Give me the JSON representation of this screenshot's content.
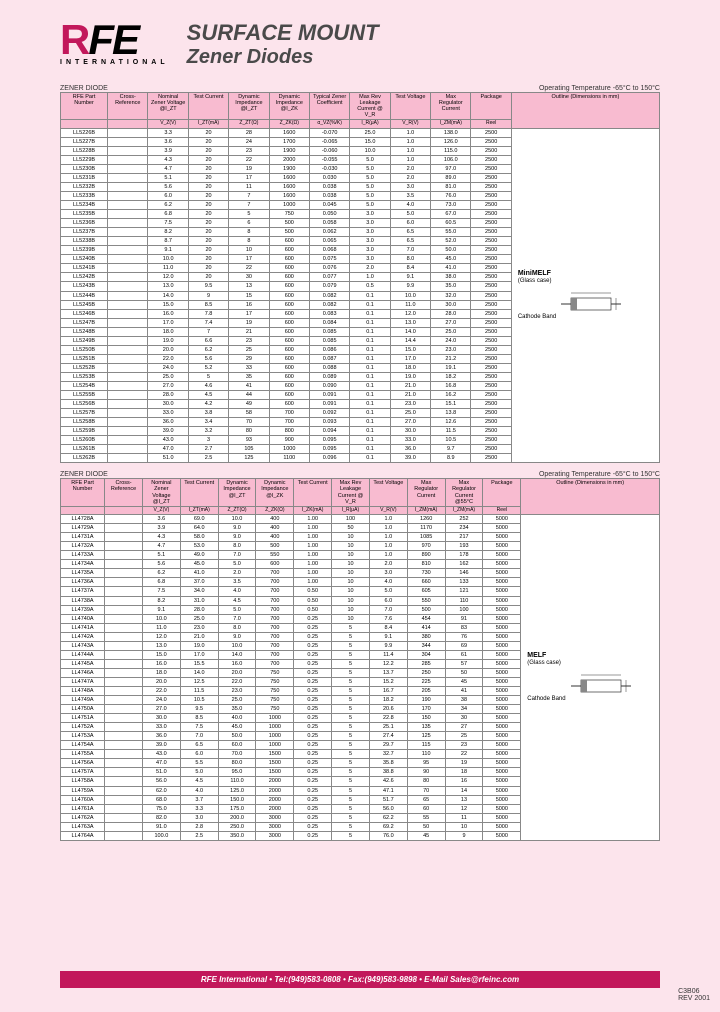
{
  "header": {
    "logo_r": "R",
    "logo_fe": "FE",
    "intl": "INTERNATIONAL",
    "title1": "SURFACE MOUNT",
    "title2": "Zener Diodes"
  },
  "table1": {
    "label": "ZENER DIODE",
    "temp": "Operating Temperature -65°C to 150°C",
    "headers": [
      "RFE Part Number",
      "Cross-Reference",
      "Nominal Zener Voltage @I_ZT",
      "Test Current",
      "Dynamic Impedance @I_ZT",
      "Dynamic Impedance @I_ZK",
      "Typical Zener Coefficient",
      "Max Rev Leakage Current @ V_R",
      "Test Voltage",
      "Max Regulator Current",
      "Package"
    ],
    "outline_h": "Outline (Dimensions in mm)",
    "sub": [
      "",
      "",
      "V_Z(V)",
      "I_ZT(mA)",
      "Z_ZT(Ω)",
      "Z_ZK(Ω)",
      "α_VZ(%/K)",
      "I_R(μA)",
      "V_R(V)",
      "I_ZM(mA)",
      "Reel"
    ],
    "rows": [
      [
        "LL5226B",
        "",
        "3.3",
        "20",
        "28",
        "1600",
        "-0.070",
        "25.0",
        "1.0",
        "138.0",
        "2500"
      ],
      [
        "LL5227B",
        "",
        "3.6",
        "20",
        "24",
        "1700",
        "-0.065",
        "15.0",
        "1.0",
        "126.0",
        "2500"
      ],
      [
        "LL5228B",
        "",
        "3.9",
        "20",
        "23",
        "1900",
        "-0.060",
        "10.0",
        "1.0",
        "115.0",
        "2500"
      ],
      [
        "LL5229B",
        "",
        "4.3",
        "20",
        "22",
        "2000",
        "-0.055",
        "5.0",
        "1.0",
        "106.0",
        "2500"
      ],
      [
        "LL5230B",
        "",
        "4.7",
        "20",
        "19",
        "1900",
        "-0.030",
        "5.0",
        "2.0",
        "97.0",
        "2500"
      ],
      [
        "LL5231B",
        "",
        "5.1",
        "20",
        "17",
        "1600",
        "0.030",
        "5.0",
        "2.0",
        "89.0",
        "2500"
      ],
      [
        "LL5232B",
        "",
        "5.6",
        "20",
        "11",
        "1600",
        "0.038",
        "5.0",
        "3.0",
        "81.0",
        "2500"
      ],
      [
        "LL5233B",
        "",
        "6.0",
        "20",
        "7",
        "1600",
        "0.038",
        "5.0",
        "3.5",
        "76.0",
        "2500"
      ],
      [
        "LL5234B",
        "",
        "6.2",
        "20",
        "7",
        "1000",
        "0.045",
        "5.0",
        "4.0",
        "73.0",
        "2500"
      ],
      [
        "LL5235B",
        "",
        "6.8",
        "20",
        "5",
        "750",
        "0.050",
        "3.0",
        "5.0",
        "67.0",
        "2500"
      ],
      [
        "LL5236B",
        "",
        "7.5",
        "20",
        "6",
        "500",
        "0.058",
        "3.0",
        "6.0",
        "60.5",
        "2500"
      ],
      [
        "LL5237B",
        "",
        "8.2",
        "20",
        "8",
        "500",
        "0.062",
        "3.0",
        "6.5",
        "55.0",
        "2500"
      ],
      [
        "LL5238B",
        "",
        "8.7",
        "20",
        "8",
        "600",
        "0.065",
        "3.0",
        "6.5",
        "52.0",
        "2500"
      ],
      [
        "LL5239B",
        "",
        "9.1",
        "20",
        "10",
        "600",
        "0.068",
        "3.0",
        "7.0",
        "50.0",
        "2500"
      ],
      [
        "LL5240B",
        "",
        "10.0",
        "20",
        "17",
        "600",
        "0.075",
        "3.0",
        "8.0",
        "45.0",
        "2500"
      ],
      [
        "LL5241B",
        "",
        "11.0",
        "20",
        "22",
        "600",
        "0.076",
        "2.0",
        "8.4",
        "41.0",
        "2500"
      ],
      [
        "LL5242B",
        "",
        "12.0",
        "20",
        "30",
        "600",
        "0.077",
        "1.0",
        "9.1",
        "38.0",
        "2500"
      ],
      [
        "LL5243B",
        "",
        "13.0",
        "9.5",
        "13",
        "600",
        "0.079",
        "0.5",
        "9.9",
        "35.0",
        "2500"
      ],
      [
        "LL5244B",
        "",
        "14.0",
        "9",
        "15",
        "600",
        "0.082",
        "0.1",
        "10.0",
        "32.0",
        "2500"
      ],
      [
        "LL5245B",
        "",
        "15.0",
        "8.5",
        "16",
        "600",
        "0.082",
        "0.1",
        "11.0",
        "30.0",
        "2500"
      ],
      [
        "LL5246B",
        "",
        "16.0",
        "7.8",
        "17",
        "600",
        "0.083",
        "0.1",
        "12.0",
        "28.0",
        "2500"
      ],
      [
        "LL5247B",
        "",
        "17.0",
        "7.4",
        "19",
        "600",
        "0.084",
        "0.1",
        "13.0",
        "27.0",
        "2500"
      ],
      [
        "LL5248B",
        "",
        "18.0",
        "7",
        "21",
        "600",
        "0.085",
        "0.1",
        "14.0",
        "25.0",
        "2500"
      ],
      [
        "LL5249B",
        "",
        "19.0",
        "6.6",
        "23",
        "600",
        "0.085",
        "0.1",
        "14.4",
        "24.0",
        "2500"
      ],
      [
        "LL5250B",
        "",
        "20.0",
        "6.2",
        "25",
        "600",
        "0.086",
        "0.1",
        "15.0",
        "23.0",
        "2500"
      ],
      [
        "LL5251B",
        "",
        "22.0",
        "5.6",
        "29",
        "600",
        "0.087",
        "0.1",
        "17.0",
        "21.2",
        "2500"
      ],
      [
        "LL5252B",
        "",
        "24.0",
        "5.2",
        "33",
        "600",
        "0.088",
        "0.1",
        "18.0",
        "19.1",
        "2500"
      ],
      [
        "LL5253B",
        "",
        "25.0",
        "5",
        "35",
        "600",
        "0.089",
        "0.1",
        "19.0",
        "18.2",
        "2500"
      ],
      [
        "LL5254B",
        "",
        "27.0",
        "4.6",
        "41",
        "600",
        "0.090",
        "0.1",
        "21.0",
        "16.8",
        "2500"
      ],
      [
        "LL5255B",
        "",
        "28.0",
        "4.5",
        "44",
        "600",
        "0.091",
        "0.1",
        "21.0",
        "16.2",
        "2500"
      ],
      [
        "LL5256B",
        "",
        "30.0",
        "4.2",
        "49",
        "600",
        "0.091",
        "0.1",
        "23.0",
        "15.1",
        "2500"
      ],
      [
        "LL5257B",
        "",
        "33.0",
        "3.8",
        "58",
        "700",
        "0.092",
        "0.1",
        "25.0",
        "13.8",
        "2500"
      ],
      [
        "LL5258B",
        "",
        "36.0",
        "3.4",
        "70",
        "700",
        "0.093",
        "0.1",
        "27.0",
        "12.6",
        "2500"
      ],
      [
        "LL5259B",
        "",
        "39.0",
        "3.2",
        "80",
        "800",
        "0.094",
        "0.1",
        "30.0",
        "11.5",
        "2500"
      ],
      [
        "LL5260B",
        "",
        "43.0",
        "3",
        "93",
        "900",
        "0.095",
        "0.1",
        "33.0",
        "10.5",
        "2500"
      ],
      [
        "LL5261B",
        "",
        "47.0",
        "2.7",
        "105",
        "1000",
        "0.095",
        "0.1",
        "36.0",
        "9.7",
        "2500"
      ],
      [
        "LL5262B",
        "",
        "51.0",
        "2.5",
        "125",
        "1100",
        "0.096",
        "0.1",
        "39.0",
        "8.9",
        "2500"
      ]
    ],
    "outline_label": "MiniMELF",
    "outline_sub": "(Glass case)",
    "outline_cathode": "Cathode Band"
  },
  "table2": {
    "label": "ZENER DIODE",
    "temp": "Operating Temperature -65°C to 150°C",
    "headers": [
      "RFE Part Number",
      "Cross-Reference",
      "Nominal Zener Voltage @I_ZT",
      "Test Current",
      "Dynamic Impedance @I_ZT",
      "Dynamic Impedance @I_ZK",
      "Test Current",
      "Max Rev Leakage Current @ V_R",
      "Test Voltage",
      "Max Regulator Current",
      "Max Regulator Current @55°C",
      "Package"
    ],
    "outline_h": "Outline (Dimensions in mm)",
    "sub": [
      "",
      "",
      "V_Z(V)",
      "I_ZT(mA)",
      "Z_ZT(Ω)",
      "Z_ZK(Ω)",
      "I_ZK(mA)",
      "I_R(μA)",
      "V_R(V)",
      "I_ZM(mA)",
      "I_ZM(mA)",
      "Reel"
    ],
    "rows": [
      [
        "LL4728A",
        "",
        "3.6",
        "69.0",
        "10.0",
        "400",
        "1.00",
        "100",
        "1.0",
        "1260",
        "252",
        "5000"
      ],
      [
        "LL4729A",
        "",
        "3.9",
        "64.0",
        "9.0",
        "400",
        "1.00",
        "50",
        "1.0",
        "1170",
        "234",
        "5000"
      ],
      [
        "LL4731A",
        "",
        "4.3",
        "58.0",
        "9.0",
        "400",
        "1.00",
        "10",
        "1.0",
        "1085",
        "217",
        "5000"
      ],
      [
        "LL4732A",
        "",
        "4.7",
        "53.0",
        "8.0",
        "500",
        "1.00",
        "10",
        "1.0",
        "970",
        "193",
        "5000"
      ],
      [
        "LL4733A",
        "",
        "5.1",
        "49.0",
        "7.0",
        "550",
        "1.00",
        "10",
        "1.0",
        "890",
        "178",
        "5000"
      ],
      [
        "LL4734A",
        "",
        "5.6",
        "45.0",
        "5.0",
        "600",
        "1.00",
        "10",
        "2.0",
        "810",
        "162",
        "5000"
      ],
      [
        "LL4735A",
        "",
        "6.2",
        "41.0",
        "2.0",
        "700",
        "1.00",
        "10",
        "3.0",
        "730",
        "146",
        "5000"
      ],
      [
        "LL4736A",
        "",
        "6.8",
        "37.0",
        "3.5",
        "700",
        "1.00",
        "10",
        "4.0",
        "660",
        "133",
        "5000"
      ],
      [
        "LL4737A",
        "",
        "7.5",
        "34.0",
        "4.0",
        "700",
        "0.50",
        "10",
        "5.0",
        "605",
        "121",
        "5000"
      ],
      [
        "LL4738A",
        "",
        "8.2",
        "31.0",
        "4.5",
        "700",
        "0.50",
        "10",
        "6.0",
        "550",
        "110",
        "5000"
      ],
      [
        "LL4739A",
        "",
        "9.1",
        "28.0",
        "5.0",
        "700",
        "0.50",
        "10",
        "7.0",
        "500",
        "100",
        "5000"
      ],
      [
        "LL4740A",
        "",
        "10.0",
        "25.0",
        "7.0",
        "700",
        "0.25",
        "10",
        "7.6",
        "454",
        "91",
        "5000"
      ],
      [
        "LL4741A",
        "",
        "11.0",
        "23.0",
        "8.0",
        "700",
        "0.25",
        "5",
        "8.4",
        "414",
        "83",
        "5000"
      ],
      [
        "LL4742A",
        "",
        "12.0",
        "21.0",
        "9.0",
        "700",
        "0.25",
        "5",
        "9.1",
        "380",
        "76",
        "5000"
      ],
      [
        "LL4743A",
        "",
        "13.0",
        "19.0",
        "10.0",
        "700",
        "0.25",
        "5",
        "9.9",
        "344",
        "69",
        "5000"
      ],
      [
        "LL4744A",
        "",
        "15.0",
        "17.0",
        "14.0",
        "700",
        "0.25",
        "5",
        "11.4",
        "304",
        "61",
        "5000"
      ],
      [
        "LL4745A",
        "",
        "16.0",
        "15.5",
        "16.0",
        "700",
        "0.25",
        "5",
        "12.2",
        "285",
        "57",
        "5000"
      ],
      [
        "LL4746A",
        "",
        "18.0",
        "14.0",
        "20.0",
        "750",
        "0.25",
        "5",
        "13.7",
        "250",
        "50",
        "5000"
      ],
      [
        "LL4747A",
        "",
        "20.0",
        "12.5",
        "22.0",
        "750",
        "0.25",
        "5",
        "15.2",
        "225",
        "45",
        "5000"
      ],
      [
        "LL4748A",
        "",
        "22.0",
        "11.5",
        "23.0",
        "750",
        "0.25",
        "5",
        "16.7",
        "205",
        "41",
        "5000"
      ],
      [
        "LL4749A",
        "",
        "24.0",
        "10.5",
        "25.0",
        "750",
        "0.25",
        "5",
        "18.2",
        "190",
        "38",
        "5000"
      ],
      [
        "LL4750A",
        "",
        "27.0",
        "9.5",
        "35.0",
        "750",
        "0.25",
        "5",
        "20.6",
        "170",
        "34",
        "5000"
      ],
      [
        "LL4751A",
        "",
        "30.0",
        "8.5",
        "40.0",
        "1000",
        "0.25",
        "5",
        "22.8",
        "150",
        "30",
        "5000"
      ],
      [
        "LL4752A",
        "",
        "33.0",
        "7.5",
        "45.0",
        "1000",
        "0.25",
        "5",
        "25.1",
        "135",
        "27",
        "5000"
      ],
      [
        "LL4753A",
        "",
        "36.0",
        "7.0",
        "50.0",
        "1000",
        "0.25",
        "5",
        "27.4",
        "125",
        "25",
        "5000"
      ],
      [
        "LL4754A",
        "",
        "39.0",
        "6.5",
        "60.0",
        "1000",
        "0.25",
        "5",
        "29.7",
        "115",
        "23",
        "5000"
      ],
      [
        "LL4755A",
        "",
        "43.0",
        "6.0",
        "70.0",
        "1500",
        "0.25",
        "5",
        "32.7",
        "110",
        "22",
        "5000"
      ],
      [
        "LL4756A",
        "",
        "47.0",
        "5.5",
        "80.0",
        "1500",
        "0.25",
        "5",
        "35.8",
        "95",
        "19",
        "5000"
      ],
      [
        "LL4757A",
        "",
        "51.0",
        "5.0",
        "95.0",
        "1500",
        "0.25",
        "5",
        "38.8",
        "90",
        "18",
        "5000"
      ],
      [
        "LL4758A",
        "",
        "56.0",
        "4.5",
        "110.0",
        "2000",
        "0.25",
        "5",
        "42.6",
        "80",
        "16",
        "5000"
      ],
      [
        "LL4759A",
        "",
        "62.0",
        "4.0",
        "125.0",
        "2000",
        "0.25",
        "5",
        "47.1",
        "70",
        "14",
        "5000"
      ],
      [
        "LL4760A",
        "",
        "68.0",
        "3.7",
        "150.0",
        "2000",
        "0.25",
        "5",
        "51.7",
        "65",
        "13",
        "5000"
      ],
      [
        "LL4761A",
        "",
        "75.0",
        "3.3",
        "175.0",
        "2000",
        "0.25",
        "5",
        "56.0",
        "60",
        "12",
        "5000"
      ],
      [
        "LL4762A",
        "",
        "82.0",
        "3.0",
        "200.0",
        "3000",
        "0.25",
        "5",
        "62.2",
        "55",
        "11",
        "5000"
      ],
      [
        "LL4763A",
        "",
        "91.0",
        "2.8",
        "250.0",
        "3000",
        "0.25",
        "5",
        "69.2",
        "50",
        "10",
        "5000"
      ],
      [
        "LL4764A",
        "",
        "100.0",
        "2.5",
        "350.0",
        "3000",
        "0.25",
        "5",
        "76.0",
        "45",
        "9",
        "5000"
      ]
    ],
    "outline_label": "MELF",
    "outline_sub": "(Glass case)",
    "outline_cathode": "Cathode Band"
  },
  "footer": {
    "text": "RFE International • Tel:(949)583-0808 • Fax:(949)583-9898 • E-Mail Sales@rfeinc.com",
    "rev1": "C3B06",
    "rev2": "REV 2001"
  },
  "colors": {
    "bg": "#fce4ec",
    "header_bg": "#f8bbd0",
    "accent": "#c2185b"
  }
}
